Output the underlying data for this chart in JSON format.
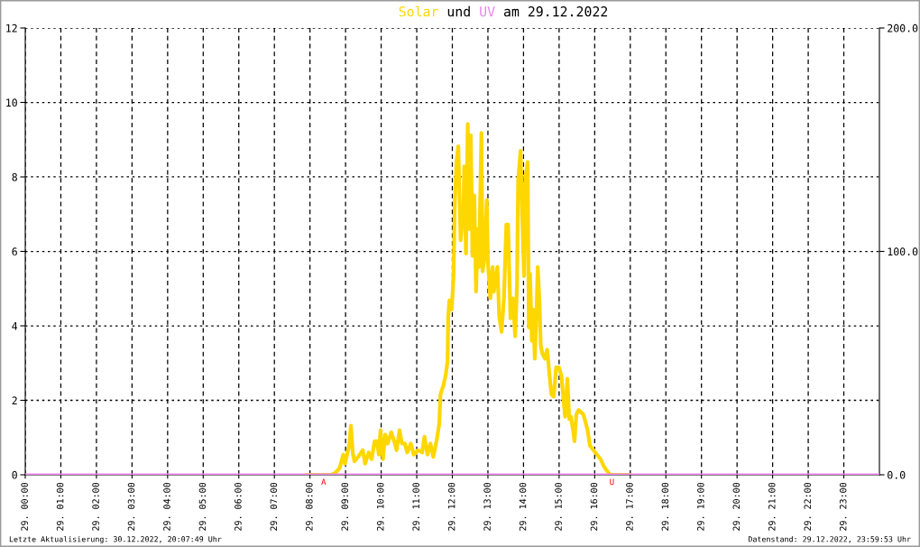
{
  "chart_data": {
    "type": "line",
    "title": "Solar und UV am 29.12.2022",
    "xlim": [
      "2022-12-29T00:00",
      "2022-12-30T00:00"
    ],
    "xticks": [
      {
        "value": "2022-12-29T00:00",
        "label": "29. 00:00"
      },
      {
        "value": "2022-12-29T01:00",
        "label": "29. 01:00"
      },
      {
        "value": "2022-12-29T02:00",
        "label": "29. 02:00"
      },
      {
        "value": "2022-12-29T03:00",
        "label": "29. 03:00"
      },
      {
        "value": "2022-12-29T04:00",
        "label": "29. 04:00"
      },
      {
        "value": "2022-12-29T05:00",
        "label": "29. 05:00"
      },
      {
        "value": "2022-12-29T06:00",
        "label": "29. 06:00"
      },
      {
        "value": "2022-12-29T07:00",
        "label": "29. 07:00"
      },
      {
        "value": "2022-12-29T08:00",
        "label": "29. 08:00"
      },
      {
        "value": "2022-12-29T09:00",
        "label": "29. 09:00"
      },
      {
        "value": "2022-12-29T10:00",
        "label": "29. 10:00"
      },
      {
        "value": "2022-12-29T11:00",
        "label": "29. 11:00"
      },
      {
        "value": "2022-12-29T12:00",
        "label": "29. 12:00"
      },
      {
        "value": "2022-12-29T13:00",
        "label": "29. 13:00"
      },
      {
        "value": "2022-12-29T14:00",
        "label": "29. 14:00"
      },
      {
        "value": "2022-12-29T15:00",
        "label": "29. 15:00"
      },
      {
        "value": "2022-12-29T16:00",
        "label": "29. 16:00"
      },
      {
        "value": "2022-12-29T17:00",
        "label": "29. 17:00"
      },
      {
        "value": "2022-12-29T18:00",
        "label": "29. 18:00"
      },
      {
        "value": "2022-12-29T19:00",
        "label": "29. 19:00"
      },
      {
        "value": "2022-12-29T20:00",
        "label": "29. 20:00"
      },
      {
        "value": "2022-12-29T21:00",
        "label": "29. 21:00"
      },
      {
        "value": "2022-12-29T22:00",
        "label": "29. 22:00"
      },
      {
        "value": "2022-12-29T23:00",
        "label": "29. 23:00"
      }
    ],
    "ylim": [
      0,
      12
    ],
    "yticks": [
      0,
      2,
      4,
      6,
      8,
      10,
      12
    ],
    "y2lim": [
      0,
      200
    ],
    "y2ticks": [
      {
        "value": 0,
        "label": "0.0"
      },
      {
        "value": 100,
        "label": "100.0"
      },
      {
        "value": 200,
        "label": "200.0"
      }
    ],
    "grid": true,
    "series": [
      {
        "color": "#ffd700",
        "axis": "y2",
        "x": [
          "2022-12-29T07:54",
          "2022-12-29T08:36",
          "2022-12-29T08:43",
          "2022-12-29T08:50",
          "2022-12-29T08:56",
          "2022-12-29T08:59",
          "2022-12-29T09:06",
          "2022-12-29T09:09",
          "2022-12-29T09:12",
          "2022-12-29T09:15",
          "2022-12-29T09:21",
          "2022-12-29T09:29",
          "2022-12-29T09:33",
          "2022-12-29T09:39",
          "2022-12-29T09:44",
          "2022-12-29T09:49",
          "2022-12-29T09:53",
          "2022-12-29T09:56",
          "2022-12-29T09:59",
          "2022-12-29T10:03",
          "2022-12-29T10:07",
          "2022-12-29T10:11",
          "2022-12-29T10:17",
          "2022-12-29T10:22",
          "2022-12-29T10:26",
          "2022-12-29T10:31",
          "2022-12-29T10:35",
          "2022-12-29T10:40",
          "2022-12-29T10:44",
          "2022-12-29T10:50",
          "2022-12-29T10:55",
          "2022-12-29T11:02",
          "2022-12-29T11:09",
          "2022-12-29T11:13",
          "2022-12-29T11:18",
          "2022-12-29T11:23",
          "2022-12-29T11:28",
          "2022-12-29T11:34",
          "2022-12-29T11:38",
          "2022-12-29T11:40",
          "2022-12-29T11:45",
          "2022-12-29T11:49",
          "2022-12-29T11:52",
          "2022-12-29T11:53",
          "2022-12-29T11:55",
          "2022-12-29T11:59",
          "2022-12-29T12:02",
          "2022-12-29T12:04",
          "2022-12-29T12:07",
          "2022-12-29T12:10",
          "2022-12-29T12:12",
          "2022-12-29T12:14",
          "2022-12-29T12:19",
          "2022-12-29T12:20",
          "2022-12-29T12:23",
          "2022-12-29T12:26",
          "2022-12-29T12:29",
          "2022-12-29T12:31",
          "2022-12-29T12:34",
          "2022-12-29T12:37",
          "2022-12-29T12:40",
          "2022-12-29T12:43",
          "2022-12-29T12:45",
          "2022-12-29T12:49",
          "2022-12-29T12:51",
          "2022-12-29T12:54",
          "2022-12-29T12:58",
          "2022-12-29T13:00",
          "2022-12-29T13:04",
          "2022-12-29T13:08",
          "2022-12-29T13:10",
          "2022-12-29T13:16",
          "2022-12-29T13:19",
          "2022-12-29T13:23",
          "2022-12-29T13:27",
          "2022-12-29T13:31",
          "2022-12-29T13:34",
          "2022-12-29T13:36",
          "2022-12-29T13:38",
          "2022-12-29T13:42",
          "2022-12-29T13:46",
          "2022-12-29T13:49",
          "2022-12-29T13:51",
          "2022-12-29T13:55",
          "2022-12-29T13:58",
          "2022-12-29T14:01",
          "2022-12-29T14:03",
          "2022-12-29T14:07",
          "2022-12-29T14:09",
          "2022-12-29T14:11",
          "2022-12-29T14:14",
          "2022-12-29T14:16",
          "2022-12-29T14:19",
          "2022-12-29T14:22",
          "2022-12-29T14:24",
          "2022-12-29T14:27",
          "2022-12-29T14:29",
          "2022-12-29T14:32",
          "2022-12-29T14:36",
          "2022-12-29T14:40",
          "2022-12-29T14:43",
          "2022-12-29T14:47",
          "2022-12-29T14:51",
          "2022-12-29T14:55",
          "2022-12-29T15:00",
          "2022-12-29T15:04",
          "2022-12-29T15:07",
          "2022-12-29T15:10",
          "2022-12-29T15:14",
          "2022-12-29T15:17",
          "2022-12-29T15:20",
          "2022-12-29T15:24",
          "2022-12-29T15:26",
          "2022-12-29T15:29",
          "2022-12-29T15:33",
          "2022-12-29T15:37",
          "2022-12-29T15:41",
          "2022-12-29T15:45",
          "2022-12-29T15:48",
          "2022-12-29T15:52",
          "2022-12-29T15:58",
          "2022-12-29T16:04",
          "2022-12-29T16:10",
          "2022-12-29T16:15",
          "2022-12-29T16:20",
          "2022-12-29T16:26",
          "2022-12-29T17:00"
        ],
        "values": [
          0,
          0,
          1,
          3,
          9,
          5,
          13,
          22,
          10,
          6,
          8,
          11,
          5,
          10,
          7,
          15,
          15,
          9,
          20,
          7,
          18,
          14,
          19,
          15,
          11,
          20,
          14,
          14,
          10,
          14,
          9,
          11,
          10,
          17,
          9,
          14,
          8,
          16,
          23,
          36,
          40,
          45,
          51,
          70,
          78,
          74,
          89,
          120,
          140,
          147,
          126,
          105,
          120,
          138,
          99,
          157,
          110,
          152,
          98,
          125,
          82,
          110,
          93,
          153,
          91,
          97,
          123,
          95,
          79,
          93,
          82,
          93,
          71,
          64,
          79,
          112,
          112,
          91,
          70,
          79,
          62,
          85,
          132,
          145,
          114,
          89,
          132,
          140,
          66,
          90,
          60,
          74,
          52,
          74,
          93,
          77,
          58,
          54,
          52,
          56,
          47,
          36,
          35,
          48,
          48,
          44,
          35,
          26,
          43,
          25,
          26,
          19,
          15,
          27,
          29,
          28,
          27,
          23,
          20,
          13,
          11,
          9,
          7,
          4,
          2,
          0,
          0
        ]
      },
      {
        "color": "#ee82ee",
        "x": [
          "2022-12-29T00:00",
          "2022-12-30T00:00"
        ],
        "values": [
          0,
          0
        ]
      }
    ],
    "annotations": [
      {
        "text": "A",
        "x": "2022-12-29T08:23",
        "y": 0
      },
      {
        "text": "U",
        "x": "2022-12-29T16:29",
        "y": 0
      },
      "Letzte Aktualisierung: 30.12.2022, 20:07:49 Uhr",
      "Datenstand: 29.12.2022, 23:59:53 Uhr"
    ]
  }
}
